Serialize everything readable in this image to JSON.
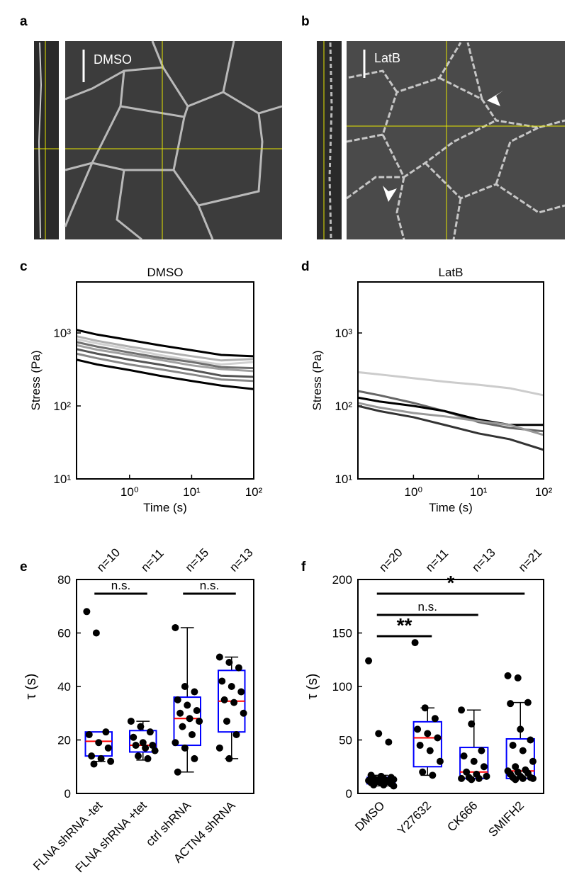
{
  "images": [
    {
      "label": "a",
      "caption": "DMSO"
    },
    {
      "label": "b",
      "caption": "LatB"
    }
  ],
  "chart_data": [
    {
      "type": "line",
      "label": "c",
      "title": "DMSO",
      "x_label": "Time (s)",
      "y_label": "Stress (Pa)",
      "xscale": "log",
      "yscale": "log",
      "xlim": [
        0.14,
        100
      ],
      "ylim": [
        10,
        5000
      ],
      "xticks": [
        {
          "value": 1,
          "label": "10⁰"
        },
        {
          "value": 10,
          "label": "10¹"
        },
        {
          "value": 100,
          "label": "10²"
        }
      ],
      "yticks": [
        {
          "value": 10,
          "label": "10¹"
        },
        {
          "value": 100,
          "label": "10²"
        },
        {
          "value": 1000,
          "label": "10³"
        }
      ],
      "x": [
        0.14,
        0.3,
        1,
        3,
        10,
        30,
        100
      ],
      "series": [
        {
          "color": "#000000",
          "values": [
            1100,
            950,
            800,
            680,
            580,
            500,
            480
          ]
        },
        {
          "color": "#b0b0b0",
          "values": [
            900,
            780,
            650,
            560,
            480,
            420,
            440
          ]
        },
        {
          "color": "#d0d0d0",
          "values": [
            820,
            720,
            600,
            500,
            420,
            370,
            400
          ]
        },
        {
          "color": "#707070",
          "values": [
            750,
            650,
            540,
            460,
            400,
            340,
            330
          ]
        },
        {
          "color": "#a0a0a0",
          "values": [
            680,
            590,
            500,
            430,
            360,
            320,
            300
          ]
        },
        {
          "color": "#555555",
          "values": [
            600,
            520,
            430,
            370,
            310,
            260,
            250
          ]
        },
        {
          "color": "#888888",
          "values": [
            520,
            450,
            370,
            320,
            270,
            230,
            220
          ]
        },
        {
          "color": "#000000",
          "values": [
            430,
            370,
            310,
            260,
            220,
            190,
            170
          ]
        }
      ]
    },
    {
      "type": "line",
      "label": "d",
      "title": "LatB",
      "x_label": "Time (s)",
      "y_label": "Stress (Pa)",
      "xscale": "log",
      "yscale": "log",
      "xlim": [
        0.14,
        100
      ],
      "ylim": [
        10,
        5000
      ],
      "xticks": [
        {
          "value": 1,
          "label": "10⁰"
        },
        {
          "value": 10,
          "label": "10¹"
        },
        {
          "value": 100,
          "label": "10²"
        }
      ],
      "yticks": [
        {
          "value": 10,
          "label": "10¹"
        },
        {
          "value": 100,
          "label": "10²"
        },
        {
          "value": 1000,
          "label": "10³"
        }
      ],
      "x": [
        0.14,
        0.3,
        1,
        3,
        10,
        30,
        100
      ],
      "series": [
        {
          "color": "#cccccc",
          "values": [
            290,
            270,
            240,
            215,
            195,
            175,
            140
          ]
        },
        {
          "color": "#666666",
          "values": [
            160,
            140,
            110,
            85,
            60,
            50,
            45
          ]
        },
        {
          "color": "#000000",
          "values": [
            130,
            115,
            100,
            85,
            65,
            55,
            55
          ]
        },
        {
          "color": "#999999",
          "values": [
            110,
            95,
            80,
            72,
            62,
            55,
            40
          ]
        },
        {
          "color": "#333333",
          "values": [
            100,
            85,
            70,
            55,
            42,
            35,
            25
          ]
        }
      ]
    },
    {
      "type": "box",
      "label": "e",
      "y_label": "τ (s)",
      "ylim": [
        0,
        80
      ],
      "yticks": [
        0,
        20,
        40,
        60,
        80
      ],
      "box_color": "#0000ff",
      "median_color": "#ff0000",
      "categories": [
        "FLNA shRNA -tet",
        "FLNA shRNA +tet",
        "ctrl shRNA",
        "ACTN4 shRNA"
      ],
      "counts": [
        "n=10",
        "n=11",
        "n=15",
        "n=13"
      ],
      "boxes": [
        {
          "whislo": 12,
          "q1": 14,
          "med": 19.5,
          "q3": 23,
          "whishi": 23
        },
        {
          "whislo": 12.5,
          "q1": 15.5,
          "med": 18,
          "q3": 23.5,
          "whishi": 27
        },
        {
          "whislo": 8,
          "q1": 18,
          "med": 28,
          "q3": 36,
          "whishi": 62
        },
        {
          "whislo": 13,
          "q1": 23,
          "med": 34.5,
          "q3": 46,
          "whishi": 51
        }
      ],
      "points": [
        [
          68,
          60,
          23,
          22,
          19,
          17,
          14,
          13,
          12,
          11
        ],
        [
          27,
          25,
          23,
          21,
          19,
          18,
          18,
          17,
          16,
          14,
          13
        ],
        [
          62,
          40,
          38,
          35,
          33,
          31,
          30,
          28,
          27,
          25,
          22,
          19,
          17,
          13,
          8
        ],
        [
          51,
          49,
          47,
          42,
          40,
          38,
          35,
          34,
          30,
          27,
          22,
          17,
          13
        ]
      ],
      "significance": [
        {
          "from": 0,
          "to": 1,
          "text": "n.s."
        },
        {
          "from": 2,
          "to": 3,
          "text": "n.s."
        }
      ]
    },
    {
      "type": "box",
      "label": "f",
      "y_label": "τ (s)",
      "ylim": [
        0,
        200
      ],
      "yticks": [
        0,
        50,
        100,
        150,
        200
      ],
      "box_color": "#0000ff",
      "median_color": "#ff0000",
      "categories": [
        "DMSO",
        "Y27632",
        "CK666",
        "SMIFH2"
      ],
      "counts": [
        "n=20",
        "n=11",
        "n=13",
        "n=21"
      ],
      "boxes": [
        {
          "whislo": 7,
          "q1": 9,
          "med": 12,
          "q3": 15,
          "whishi": 17
        },
        {
          "whislo": 17,
          "q1": 25,
          "med": 52,
          "q3": 67,
          "whishi": 80
        },
        {
          "whislo": 14,
          "q1": 14,
          "med": 20,
          "q3": 43,
          "whishi": 78
        },
        {
          "whislo": 14,
          "q1": 14,
          "med": 21,
          "q3": 51,
          "whishi": 85
        }
      ],
      "points": [
        [
          124,
          56,
          48,
          17,
          16,
          15,
          14,
          14,
          13,
          13,
          12,
          12,
          11,
          11,
          10,
          10,
          9,
          8,
          8,
          7
        ],
        [
          141,
          80,
          70,
          60,
          56,
          52,
          45,
          40,
          30,
          20,
          17
        ],
        [
          78,
          65,
          40,
          35,
          30,
          25,
          20,
          18,
          16,
          15,
          14,
          14,
          13
        ],
        [
          110,
          108,
          85,
          84,
          60,
          50,
          45,
          40,
          30,
          25,
          22,
          21,
          20,
          19,
          18,
          16,
          15,
          15,
          14,
          14,
          13
        ]
      ],
      "significance": [
        {
          "from": 0,
          "to": 3,
          "text": "*"
        },
        {
          "from": 0,
          "to": 2,
          "text": "n.s."
        },
        {
          "from": 0,
          "to": 1,
          "text": "**"
        }
      ]
    }
  ]
}
